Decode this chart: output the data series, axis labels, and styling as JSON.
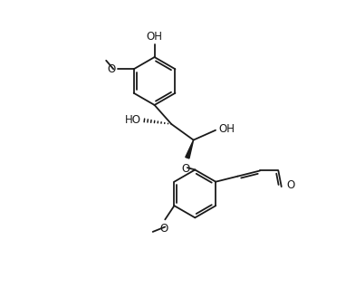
{
  "background": "#ffffff",
  "line_color": "#1a1a1a",
  "line_width": 1.3,
  "figsize": [
    3.92,
    3.18
  ],
  "dpi": 100,
  "font_size": 8.5,
  "font_family": "DejaVu Sans",
  "xlim": [
    -1.0,
    9.5
  ],
  "ylim": [
    -0.5,
    8.8
  ]
}
